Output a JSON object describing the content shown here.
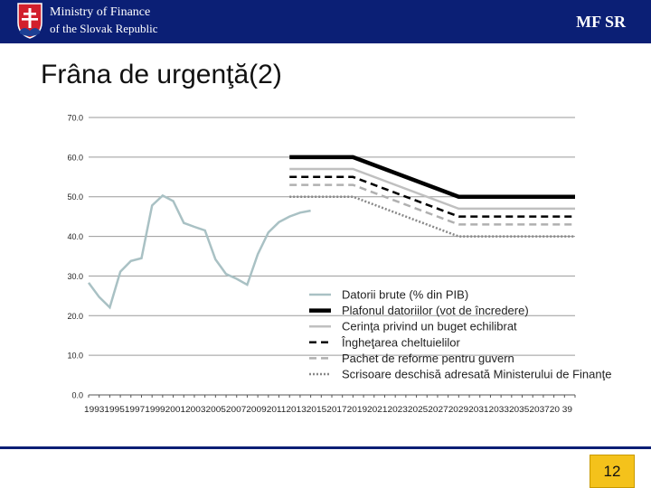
{
  "header": {
    "ministry_line1": "Ministry of Finance",
    "ministry_line2": "of the Slovak Republic",
    "brand": "MF SR",
    "crest_icon": "slovak-coat-of-arms-icon",
    "background_color": "#0b1f75"
  },
  "slide": {
    "title": "Frâna de urgenţă(2)",
    "page_number": "12"
  },
  "chart_data": {
    "type": "line",
    "ylim": [
      0,
      70
    ],
    "yticks": [
      "0.0",
      "10.0",
      "20.0",
      "30.0",
      "40.0",
      "50.0",
      "60.0",
      "70.0"
    ],
    "xlim": [
      1993,
      2039
    ],
    "xtick_label_string": "1993199519971999200120032005200720092011201320152017201920212023202520272029203120332035203720 39",
    "grid": "horizontal",
    "legend_position": "right-center",
    "series": [
      {
        "name": "Datorii brute (% din PIB)",
        "color": "#a9c1c4",
        "style": "solid",
        "points": [
          [
            1993,
            28.3
          ],
          [
            1994,
            24.7
          ],
          [
            1995,
            22.1
          ],
          [
            1996,
            31.1
          ],
          [
            1997,
            33.8
          ],
          [
            1998,
            34.5
          ],
          [
            1999,
            47.8
          ],
          [
            2000,
            50.3
          ],
          [
            2001,
            48.9
          ],
          [
            2002,
            43.4
          ],
          [
            2003,
            42.4
          ],
          [
            2004,
            41.5
          ],
          [
            2005,
            34.2
          ],
          [
            2006,
            30.5
          ],
          [
            2007,
            29.3
          ],
          [
            2008,
            27.8
          ],
          [
            2009,
            35.5
          ],
          [
            2010,
            41.0
          ],
          [
            2011,
            43.6
          ],
          [
            2012,
            45.0
          ],
          [
            2013,
            46.0
          ],
          [
            2014,
            46.5
          ]
        ]
      },
      {
        "name": "Plafonul datoriilor (vot de încredere)",
        "color": "#000000",
        "style": "solid-thick",
        "points": [
          [
            2012,
            60
          ],
          [
            2018,
            60
          ],
          [
            2028,
            50
          ],
          [
            2039,
            50
          ]
        ]
      },
      {
        "name": "Cerinţa privind un buget echilibrat",
        "color": "#c0c0c0",
        "style": "solid",
        "points": [
          [
            2012,
            57
          ],
          [
            2018,
            57
          ],
          [
            2028,
            47
          ],
          [
            2039,
            47
          ]
        ]
      },
      {
        "name": "Îngheţarea cheltuielilor",
        "color": "#000000",
        "style": "dashed",
        "points": [
          [
            2012,
            55
          ],
          [
            2018,
            55
          ],
          [
            2028,
            45
          ],
          [
            2039,
            45
          ]
        ]
      },
      {
        "name": "Pachet de reforme pentru guvern",
        "color": "#b0b0b0",
        "style": "dashed",
        "points": [
          [
            2012,
            53
          ],
          [
            2018,
            53
          ],
          [
            2028,
            43
          ],
          [
            2039,
            43
          ]
        ]
      },
      {
        "name": "Scrisoare deschisă adresată Ministerului de Finanţe",
        "color": "#888888",
        "style": "dotted",
        "points": [
          [
            2012,
            50
          ],
          [
            2018,
            50
          ],
          [
            2028,
            40
          ],
          [
            2039,
            40
          ]
        ]
      }
    ]
  }
}
